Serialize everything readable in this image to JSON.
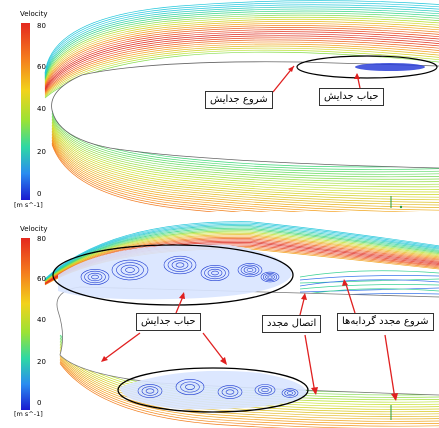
{
  "legend": {
    "title": "Velocity",
    "ticks": [
      "80",
      "60",
      "40",
      "20",
      "0"
    ],
    "unit": "[m s^-1]"
  },
  "top_panel": {
    "annotations": {
      "separation_start": "شروع جدایش",
      "separation_bubble": "حباب جدایش"
    }
  },
  "bottom_panel": {
    "annotations": {
      "separation_bubble": "حباب جدایش",
      "reattachment": "اتصال مجدد",
      "vortex_restart": "شروع مجدد گردابه‌ها"
    }
  },
  "colors": {
    "high": "#e4281e",
    "upper_mid": "#f7a21b",
    "mid": "#cde22a",
    "lower_mid": "#38d68a",
    "low": "#1a3cd8"
  }
}
